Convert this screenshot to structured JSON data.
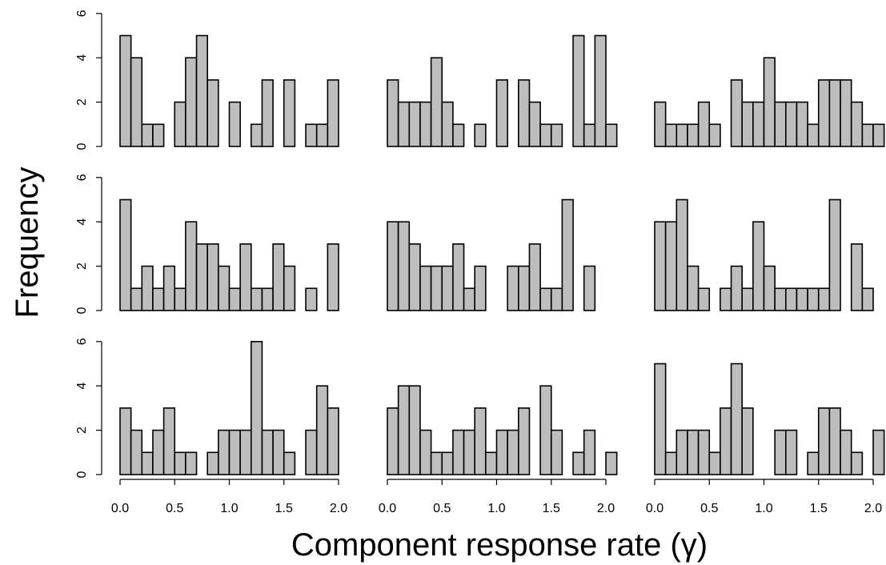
{
  "chart_data": {
    "type": "histogram-grid",
    "ylabel": "Frequency",
    "xlabel": "Component response rate (γ)",
    "bin_width": 0.1,
    "bar_color": "#bebebe",
    "layout": {
      "rows": 3,
      "cols": 3
    },
    "xlim": [
      0,
      2.0
    ],
    "xticks": [
      "0.0",
      "0.5",
      "1.0",
      "1.5",
      "2.0"
    ],
    "ylim": [
      0,
      6
    ],
    "yticks": [
      "0",
      "2",
      "4",
      "6"
    ],
    "panels": [
      {
        "bins_start": 0.0,
        "values": [
          5,
          4,
          1,
          1,
          0,
          2,
          4,
          5,
          3,
          0,
          2,
          0,
          1,
          3,
          0,
          3,
          0,
          1,
          1,
          3
        ]
      },
      {
        "bins_start": 0.0,
        "values": [
          3,
          2,
          2,
          2,
          4,
          2,
          1,
          0,
          1,
          0,
          3,
          0,
          3,
          2,
          1,
          1,
          0,
          5,
          1,
          5,
          1
        ]
      },
      {
        "bins_start": 0.0,
        "values": [
          2,
          1,
          1,
          1,
          2,
          1,
          0,
          3,
          2,
          2,
          4,
          2,
          2,
          2,
          1,
          3,
          3,
          3,
          2,
          1,
          1
        ]
      },
      {
        "bins_start": 0.0,
        "values": [
          5,
          1,
          2,
          1,
          2,
          1,
          4,
          3,
          3,
          2,
          1,
          3,
          1,
          1,
          3,
          2,
          0,
          1,
          0,
          3
        ]
      },
      {
        "bins_start": 0.0,
        "values": [
          4,
          4,
          3,
          2,
          2,
          2,
          3,
          1,
          2,
          0,
          0,
          2,
          2,
          3,
          1,
          1,
          5,
          0,
          2
        ]
      },
      {
        "bins_start": 0.0,
        "values": [
          4,
          4,
          5,
          2,
          1,
          0,
          1,
          2,
          1,
          4,
          2,
          1,
          1,
          1,
          1,
          1,
          5,
          0,
          3,
          1
        ]
      },
      {
        "bins_start": 0.0,
        "values": [
          3,
          2,
          1,
          2,
          3,
          1,
          1,
          0,
          1,
          2,
          2,
          2,
          6,
          2,
          2,
          1,
          0,
          2,
          4,
          3
        ]
      },
      {
        "bins_start": 0.0,
        "values": [
          3,
          4,
          4,
          2,
          1,
          1,
          2,
          2,
          3,
          1,
          2,
          2,
          3,
          0,
          4,
          2,
          0,
          1,
          2,
          0,
          1
        ]
      },
      {
        "bins_start": 0.0,
        "values": [
          5,
          1,
          2,
          2,
          2,
          1,
          3,
          5,
          3,
          0,
          0,
          2,
          2,
          0,
          1,
          3,
          3,
          2,
          1,
          0,
          2
        ]
      }
    ]
  }
}
